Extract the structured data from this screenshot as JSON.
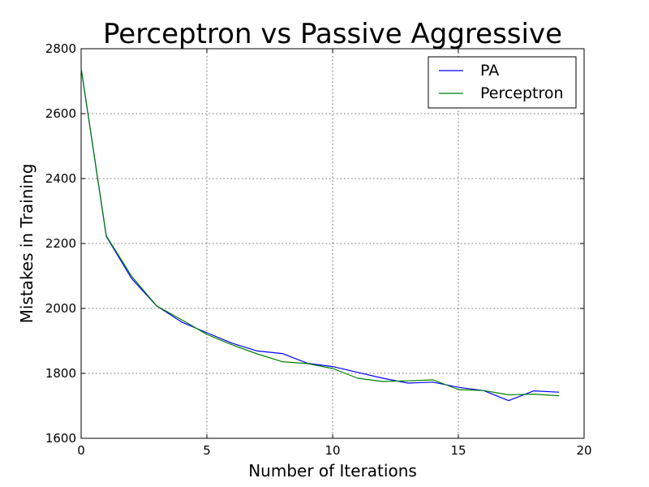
{
  "chart_data": {
    "type": "line",
    "title": "Perceptron vs Passive Aggressive",
    "xlabel": "Number of Iterations",
    "ylabel": "Mistakes in Training",
    "xlim": [
      0,
      20
    ],
    "ylim": [
      1600,
      2800
    ],
    "xticks": [
      "0",
      "5",
      "10",
      "15",
      "20"
    ],
    "yticks": [
      "1600",
      "1800",
      "2000",
      "2200",
      "2400",
      "2600",
      "2800"
    ],
    "grid": true,
    "legend_position": "top-right",
    "x": [
      0,
      1,
      2,
      3,
      4,
      5,
      6,
      7,
      8,
      9,
      10,
      11,
      12,
      13,
      14,
      15,
      16,
      17,
      18,
      19
    ],
    "series": [
      {
        "name": "PA",
        "color": "#0000ff",
        "values": [
          2740,
          2222,
          2093,
          2008,
          1958,
          1925,
          1893,
          1869,
          1861,
          1831,
          1821,
          1803,
          1785,
          1770,
          1773,
          1757,
          1747,
          1716,
          1746,
          1742
        ]
      },
      {
        "name": "Perceptron",
        "color": "#008000",
        "values": [
          2740,
          2224,
          2100,
          2008,
          1965,
          1920,
          1888,
          1860,
          1836,
          1830,
          1815,
          1785,
          1775,
          1777,
          1780,
          1750,
          1747,
          1734,
          1736,
          1731
        ]
      }
    ]
  }
}
